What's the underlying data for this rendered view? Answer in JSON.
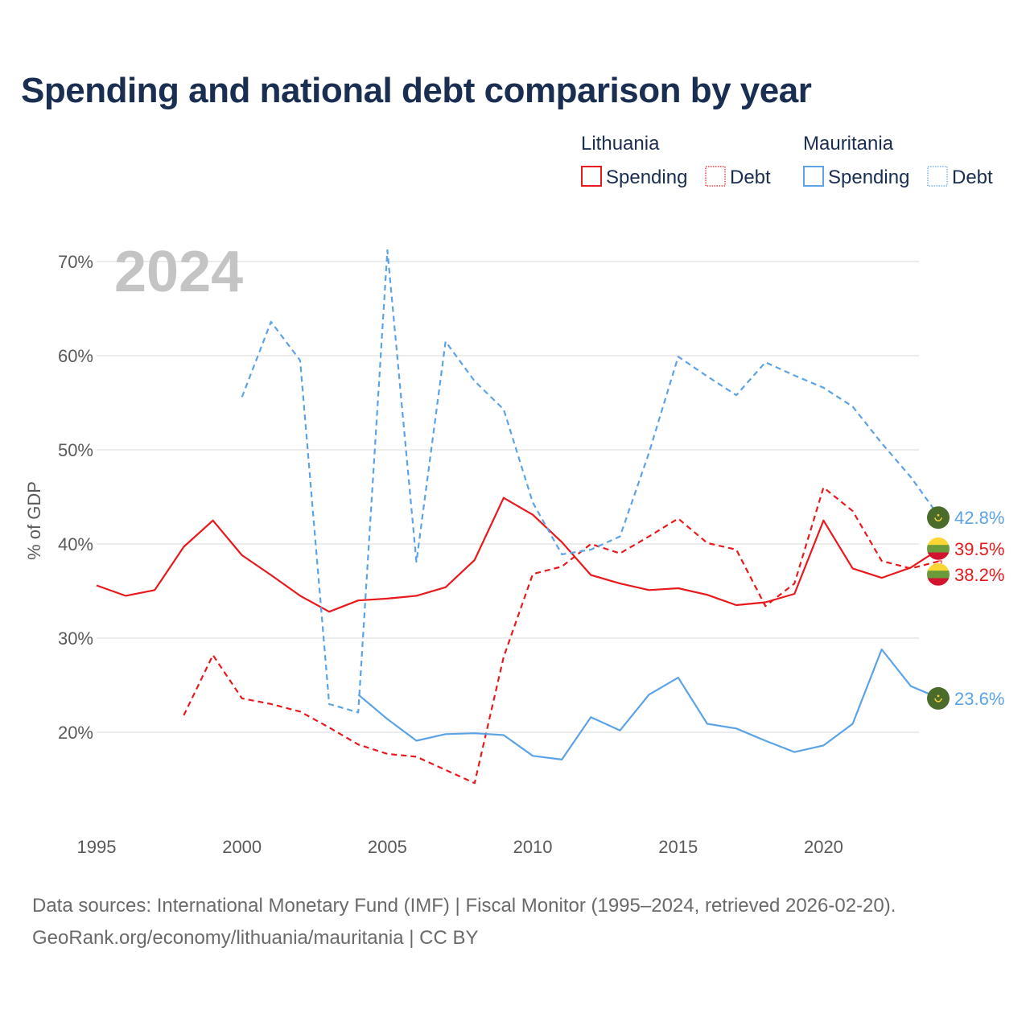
{
  "title": "Spending and national debt comparison by year",
  "footer": {
    "line1": "Data sources: International Monetary Fund (IMF) | Fiscal Monitor (1995–2024, retrieved 2026-02-20).",
    "line2": "GeoRank.org/economy/lithuania/mauritania | CC BY"
  },
  "colors": {
    "lithuania": "#e8191c",
    "mauritania": "#5ba3e6",
    "grid": "#e6e6e6",
    "watermark": "#c4c4c4",
    "mauritania_flag": "#4a6b2a",
    "mauritania_emblem": "#f4d03f",
    "lithuania_flag_top": "#fdd835",
    "lithuania_flag_mid": "#6a9a3a",
    "lithuania_flag_bottom": "#d2122e"
  },
  "chart_data": {
    "type": "line",
    "title": "Spending and national debt comparison by year",
    "ylabel": "% of GDP",
    "xlabel": "",
    "year_watermark": "2024",
    "xlim": [
      1995,
      2024
    ],
    "ylim": [
      10,
      72
    ],
    "x_ticks": [
      1995,
      2000,
      2005,
      2010,
      2015,
      2020
    ],
    "y_ticks": [
      20,
      30,
      40,
      50,
      60,
      70
    ],
    "y_tick_labels": [
      "20%",
      "30%",
      "40%",
      "50%",
      "60%",
      "70%"
    ],
    "grid": true,
    "legend": {
      "placement": "top-right",
      "groups": [
        {
          "country": "Lithuania",
          "items": [
            {
              "label": "Spending",
              "style": "solid",
              "color_key": "lithuania"
            },
            {
              "label": "Debt",
              "style": "dotted",
              "color_key": "lithuania"
            }
          ]
        },
        {
          "country": "Mauritania",
          "items": [
            {
              "label": "Spending",
              "style": "solid",
              "color_key": "mauritania"
            },
            {
              "label": "Debt",
              "style": "dotted",
              "color_key": "mauritania"
            }
          ]
        }
      ]
    },
    "series": [
      {
        "name": "Lithuania Spending",
        "country": "Lithuania",
        "color_key": "lithuania",
        "style": "solid",
        "x": [
          1995,
          1996,
          1997,
          1998,
          1999,
          2000,
          2001,
          2002,
          2003,
          2004,
          2005,
          2006,
          2007,
          2008,
          2009,
          2010,
          2011,
          2012,
          2013,
          2014,
          2015,
          2016,
          2017,
          2018,
          2019,
          2020,
          2021,
          2022,
          2023,
          2024
        ],
        "values": [
          35.6,
          34.5,
          35.1,
          39.7,
          42.5,
          38.8,
          36.7,
          34.5,
          32.8,
          34.0,
          34.2,
          34.5,
          35.4,
          38.3,
          44.9,
          43.1,
          40.2,
          36.7,
          35.8,
          35.1,
          35.3,
          34.6,
          33.5,
          33.8,
          34.7,
          42.5,
          37.4,
          36.4,
          37.5,
          39.5
        ],
        "end_label": "39.5%",
        "flag": "lithuania"
      },
      {
        "name": "Lithuania Debt",
        "country": "Lithuania",
        "color_key": "lithuania",
        "style": "dashed",
        "x": [
          1998,
          1999,
          2000,
          2001,
          2002,
          2003,
          2004,
          2005,
          2006,
          2007,
          2008,
          2009,
          2010,
          2011,
          2012,
          2013,
          2014,
          2015,
          2016,
          2017,
          2018,
          2019,
          2020,
          2021,
          2022,
          2023,
          2024
        ],
        "values": [
          21.8,
          28.2,
          23.6,
          23.0,
          22.2,
          20.5,
          18.7,
          17.7,
          17.4,
          16.0,
          14.6,
          28.0,
          36.8,
          37.6,
          40.0,
          39.0,
          40.8,
          42.7,
          40.1,
          39.4,
          33.4,
          35.8,
          46.0,
          43.5,
          38.2,
          37.4,
          38.2
        ],
        "end_label": "38.2%",
        "flag": "lithuania"
      },
      {
        "name": "Mauritania Spending",
        "country": "Mauritania",
        "color_key": "mauritania",
        "style": "solid",
        "x": [
          2004,
          2005,
          2006,
          2007,
          2008,
          2009,
          2010,
          2011,
          2012,
          2013,
          2014,
          2015,
          2016,
          2017,
          2018,
          2019,
          2020,
          2021,
          2022,
          2023,
          2024
        ],
        "values": [
          24.0,
          21.4,
          19.1,
          19.8,
          19.9,
          19.7,
          17.5,
          17.1,
          21.6,
          20.2,
          24.0,
          25.8,
          20.9,
          20.4,
          19.1,
          17.9,
          18.6,
          20.9,
          28.8,
          24.9,
          23.6
        ],
        "end_label": "23.6%",
        "flag": "mauritania"
      },
      {
        "name": "Mauritania Debt",
        "country": "Mauritania",
        "color_key": "mauritania",
        "style": "dashed",
        "x": [
          2000,
          2001,
          2002,
          2003,
          2004,
          2005,
          2006,
          2007,
          2008,
          2009,
          2010,
          2011,
          2012,
          2013,
          2014,
          2015,
          2016,
          2017,
          2018,
          2019,
          2020,
          2021,
          2022,
          2023,
          2024
        ],
        "values": [
          55.6,
          63.6,
          59.5,
          23.0,
          22.1,
          71.2,
          38.1,
          61.5,
          57.3,
          54.3,
          44.4,
          38.9,
          39.4,
          40.8,
          49.7,
          59.9,
          57.8,
          55.8,
          59.3,
          57.9,
          56.6,
          54.6,
          50.7,
          47.1,
          42.8
        ],
        "end_label": "42.8%",
        "flag": "mauritania"
      }
    ]
  }
}
